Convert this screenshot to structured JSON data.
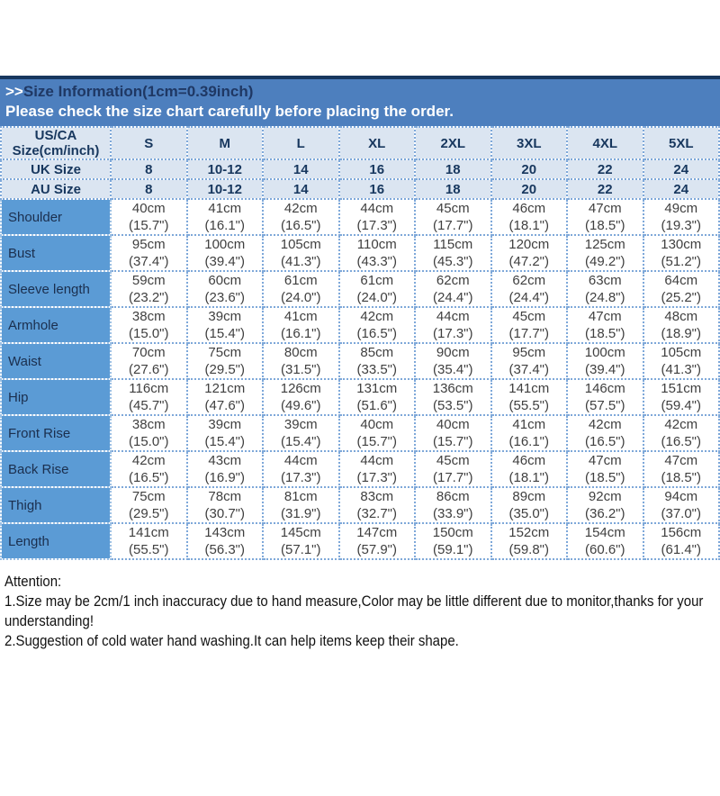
{
  "banner": {
    "prefix": ">>",
    "title": "Size Information(1cm=0.39inch)",
    "subtitle": "Please check the size chart carefully before placing the order."
  },
  "colors": {
    "banner_background": "#4d7fbe",
    "banner_top_border": "#17375e",
    "banner_title_text": "#1f3864",
    "banner_subtitle_text": "#ffffff",
    "header_cell_background": "#dbe5f1",
    "header_cell_text": "#17375e",
    "row_label_background": "#5b9bd5",
    "grid_dotted_border": "#7ea8d9",
    "data_text": "#3f3f3f"
  },
  "table": {
    "corner": {
      "line1": "US/CA",
      "line2": "Size(cm/inch)"
    },
    "sizes": [
      "S",
      "M",
      "L",
      "XL",
      "2XL",
      "3XL",
      "4XL",
      "5XL"
    ],
    "uk": {
      "label": "UK Size",
      "values": [
        "8",
        "10-12",
        "14",
        "16",
        "18",
        "20",
        "22",
        "24"
      ]
    },
    "au": {
      "label": "AU Size",
      "values": [
        "8",
        "10-12",
        "14",
        "16",
        "18",
        "20",
        "22",
        "24"
      ]
    },
    "rows": [
      {
        "label": "Shoulder",
        "values": [
          {
            "cm": "40cm",
            "inch": "(15.7\")"
          },
          {
            "cm": "41cm",
            "inch": "(16.1\")"
          },
          {
            "cm": "42cm",
            "inch": "(16.5\")"
          },
          {
            "cm": "44cm",
            "inch": "(17.3\")"
          },
          {
            "cm": "45cm",
            "inch": "(17.7\")"
          },
          {
            "cm": "46cm",
            "inch": "(18.1\")"
          },
          {
            "cm": "47cm",
            "inch": "(18.5\")"
          },
          {
            "cm": "49cm",
            "inch": "(19.3\")"
          }
        ]
      },
      {
        "label": "Bust",
        "values": [
          {
            "cm": "95cm",
            "inch": "(37.4\")"
          },
          {
            "cm": "100cm",
            "inch": "(39.4\")"
          },
          {
            "cm": "105cm",
            "inch": "(41.3\")"
          },
          {
            "cm": "110cm",
            "inch": "(43.3\")"
          },
          {
            "cm": "115cm",
            "inch": "(45.3\")"
          },
          {
            "cm": "120cm",
            "inch": "(47.2\")"
          },
          {
            "cm": "125cm",
            "inch": "(49.2\")"
          },
          {
            "cm": "130cm",
            "inch": "(51.2\")"
          }
        ]
      },
      {
        "label": "Sleeve length",
        "values": [
          {
            "cm": "59cm",
            "inch": "(23.2\")"
          },
          {
            "cm": "60cm",
            "inch": "(23.6\")"
          },
          {
            "cm": "61cm",
            "inch": "(24.0\")"
          },
          {
            "cm": "61cm",
            "inch": "(24.0\")"
          },
          {
            "cm": "62cm",
            "inch": "(24.4\")"
          },
          {
            "cm": "62cm",
            "inch": "(24.4\")"
          },
          {
            "cm": "63cm",
            "inch": "(24.8\")"
          },
          {
            "cm": "64cm",
            "inch": "(25.2\")"
          }
        ]
      },
      {
        "label": "Armhole",
        "values": [
          {
            "cm": "38cm",
            "inch": "(15.0\")"
          },
          {
            "cm": "39cm",
            "inch": "(15.4\")"
          },
          {
            "cm": "41cm",
            "inch": "(16.1\")"
          },
          {
            "cm": "42cm",
            "inch": "(16.5\")"
          },
          {
            "cm": "44cm",
            "inch": "(17.3\")"
          },
          {
            "cm": "45cm",
            "inch": "(17.7\")"
          },
          {
            "cm": "47cm",
            "inch": "(18.5\")"
          },
          {
            "cm": "48cm",
            "inch": "(18.9\")"
          }
        ]
      },
      {
        "label": "Waist",
        "values": [
          {
            "cm": "70cm",
            "inch": "(27.6\")"
          },
          {
            "cm": "75cm",
            "inch": "(29.5\")"
          },
          {
            "cm": "80cm",
            "inch": "(31.5\")"
          },
          {
            "cm": "85cm",
            "inch": "(33.5\")"
          },
          {
            "cm": "90cm",
            "inch": "(35.4\")"
          },
          {
            "cm": "95cm",
            "inch": "(37.4\")"
          },
          {
            "cm": "100cm",
            "inch": "(39.4\")"
          },
          {
            "cm": "105cm",
            "inch": "(41.3\")"
          }
        ]
      },
      {
        "label": "Hip",
        "values": [
          {
            "cm": "116cm",
            "inch": "(45.7\")"
          },
          {
            "cm": "121cm",
            "inch": "(47.6\")"
          },
          {
            "cm": "126cm",
            "inch": "(49.6\")"
          },
          {
            "cm": "131cm",
            "inch": "(51.6\")"
          },
          {
            "cm": "136cm",
            "inch": "(53.5\")"
          },
          {
            "cm": "141cm",
            "inch": "(55.5\")"
          },
          {
            "cm": "146cm",
            "inch": "(57.5\")"
          },
          {
            "cm": "151cm",
            "inch": "(59.4\")"
          }
        ]
      },
      {
        "label": "Front Rise",
        "values": [
          {
            "cm": "38cm",
            "inch": "(15.0\")"
          },
          {
            "cm": "39cm",
            "inch": "(15.4\")"
          },
          {
            "cm": "39cm",
            "inch": "(15.4\")"
          },
          {
            "cm": "40cm",
            "inch": "(15.7\")"
          },
          {
            "cm": "40cm",
            "inch": "(15.7\")"
          },
          {
            "cm": "41cm",
            "inch": "(16.1\")"
          },
          {
            "cm": "42cm",
            "inch": "(16.5\")"
          },
          {
            "cm": "42cm",
            "inch": "(16.5\")"
          }
        ]
      },
      {
        "label": "Back Rise",
        "values": [
          {
            "cm": "42cm",
            "inch": "(16.5\")"
          },
          {
            "cm": "43cm",
            "inch": "(16.9\")"
          },
          {
            "cm": "44cm",
            "inch": "(17.3\")"
          },
          {
            "cm": "44cm",
            "inch": "(17.3\")"
          },
          {
            "cm": "45cm",
            "inch": "(17.7\")"
          },
          {
            "cm": "46cm",
            "inch": "(18.1\")"
          },
          {
            "cm": "47cm",
            "inch": "(18.5\")"
          },
          {
            "cm": "47cm",
            "inch": "(18.5\")"
          }
        ]
      },
      {
        "label": "Thigh",
        "values": [
          {
            "cm": "75cm",
            "inch": "(29.5\")"
          },
          {
            "cm": "78cm",
            "inch": "(30.7\")"
          },
          {
            "cm": "81cm",
            "inch": "(31.9\")"
          },
          {
            "cm": "83cm",
            "inch": "(32.7\")"
          },
          {
            "cm": "86cm",
            "inch": "(33.9\")"
          },
          {
            "cm": "89cm",
            "inch": "(35.0\")"
          },
          {
            "cm": "92cm",
            "inch": "(36.2\")"
          },
          {
            "cm": "94cm",
            "inch": "(37.0\")"
          }
        ]
      },
      {
        "label": "Length",
        "values": [
          {
            "cm": "141cm",
            "inch": "(55.5\")"
          },
          {
            "cm": "143cm",
            "inch": "(56.3\")"
          },
          {
            "cm": "145cm",
            "inch": "(57.1\")"
          },
          {
            "cm": "147cm",
            "inch": "(57.9\")"
          },
          {
            "cm": "150cm",
            "inch": "(59.1\")"
          },
          {
            "cm": "152cm",
            "inch": "(59.8\")"
          },
          {
            "cm": "154cm",
            "inch": "(60.6\")"
          },
          {
            "cm": "156cm",
            "inch": "(61.4\")"
          }
        ]
      }
    ]
  },
  "notes": {
    "title": "Attention:",
    "lines": [
      "1.Size may be 2cm/1 inch inaccuracy due to hand measure,Color may be little different due to monitor,thanks for your",
      "understanding!",
      "2.Suggestion of cold water hand washing.It can help items keep their shape."
    ]
  }
}
